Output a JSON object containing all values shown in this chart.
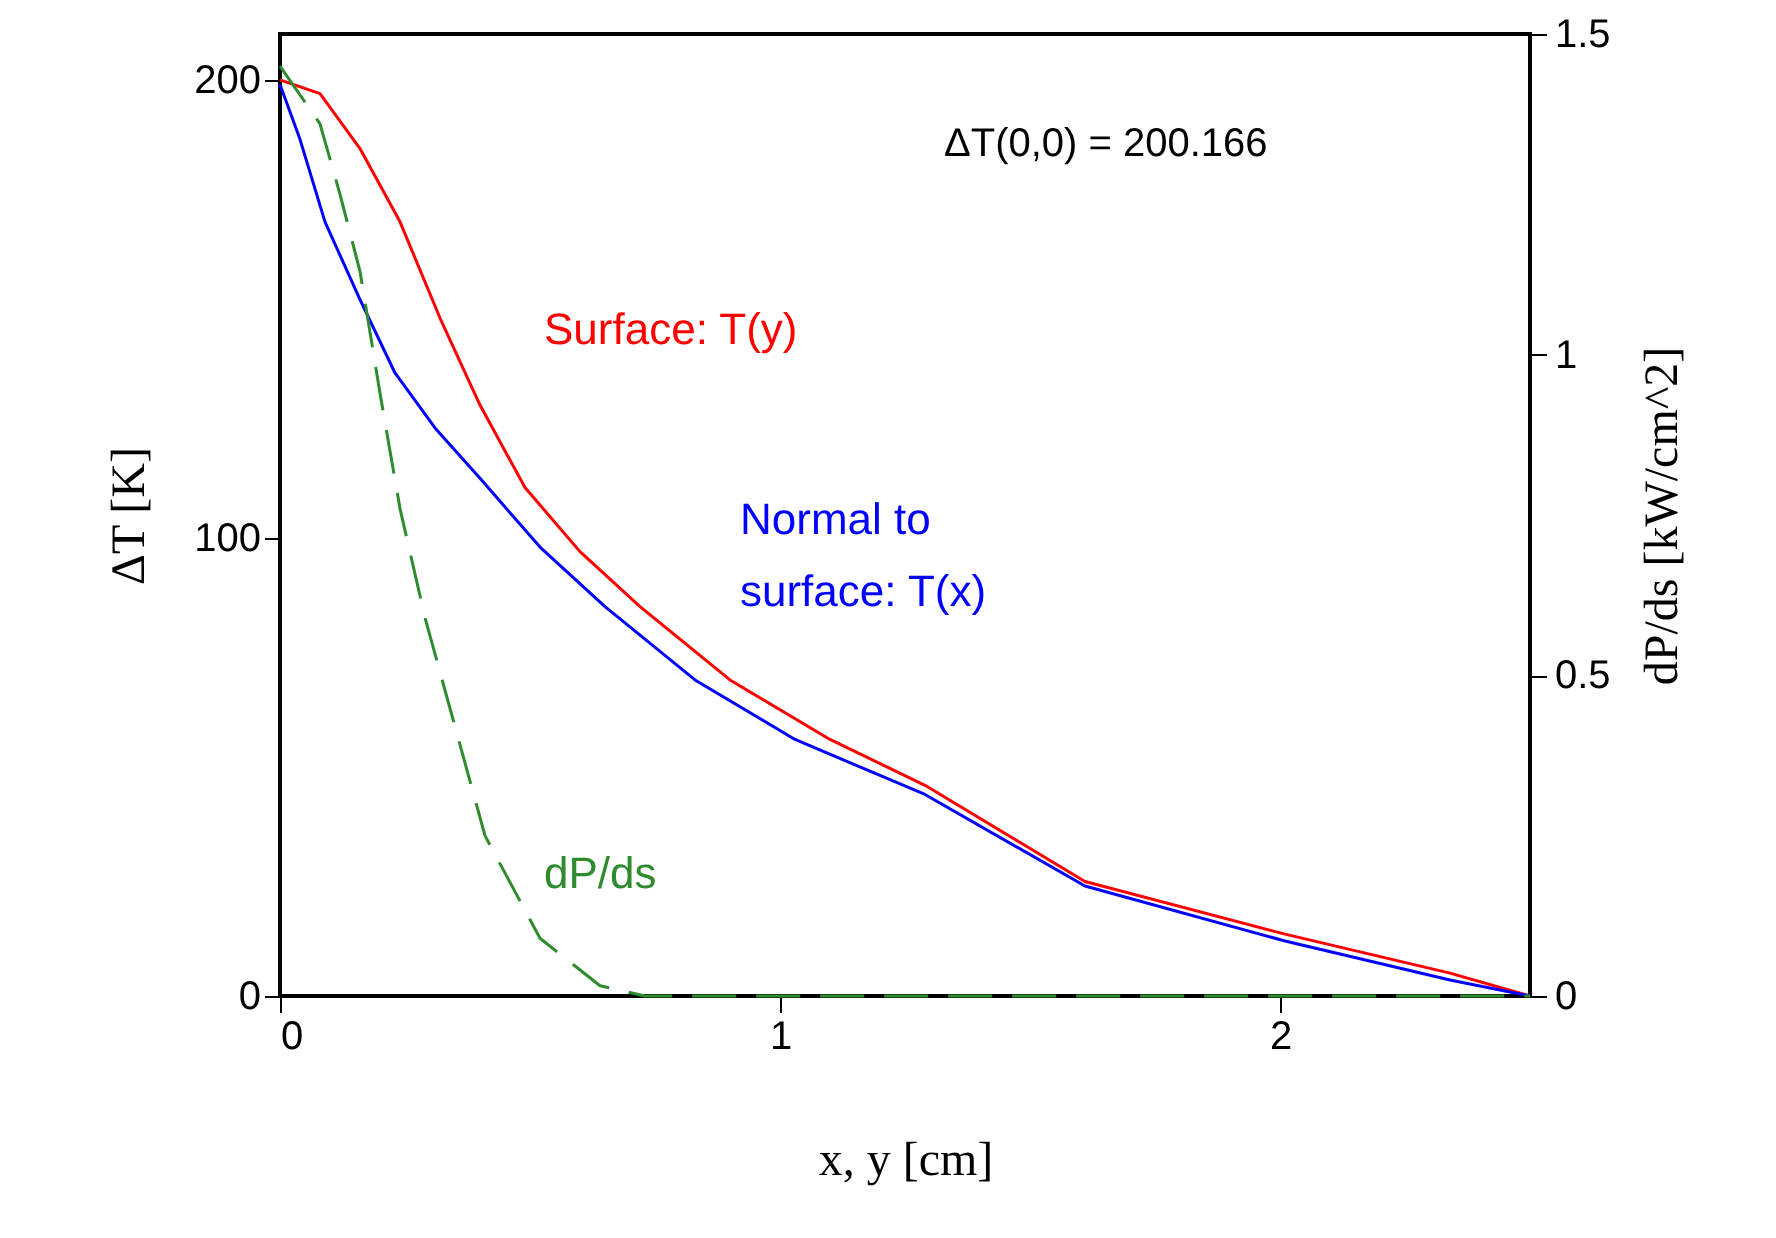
{
  "chart_data": {
    "type": "line",
    "xlabel": "x, y [cm]",
    "ylabel": "ΔT [K]",
    "y2label": "dP/ds [kW/cm^2]",
    "xlim": [
      0,
      2.5
    ],
    "ylim": [
      0,
      210
    ],
    "y2lim": [
      0,
      1.5
    ],
    "xticks": [
      0,
      1,
      2
    ],
    "yticks": [
      0,
      100,
      200
    ],
    "y2ticks": [
      0,
      0.5,
      1,
      1.5
    ],
    "annotations": [
      "ΔT(0,0) = 200.166"
    ],
    "series": [
      {
        "name": "Surface: T(y)",
        "color": "#ff0000",
        "line_style": "solid",
        "x": [
          0,
          0.08,
          0.16,
          0.24,
          0.32,
          0.4,
          0.49,
          0.6,
          0.72,
          0.9,
          1.1,
          1.29,
          1.61,
          2.01,
          2.34,
          2.5
        ],
        "values": [
          200,
          197,
          185,
          169,
          148,
          129,
          111,
          97,
          85,
          69,
          56,
          46,
          25,
          13.5,
          5,
          0
        ]
      },
      {
        "name": "Normal to surface: T(x)",
        "color": "#0000ff",
        "line_style": "solid",
        "x": [
          0,
          0.04,
          0.09,
          0.16,
          0.23,
          0.31,
          0.4,
          0.52,
          0.65,
          0.83,
          1.03,
          1.29,
          1.61,
          2.01,
          2.34,
          2.5
        ],
        "values": [
          199,
          187,
          169,
          152,
          136,
          124,
          113,
          98,
          85,
          69,
          56,
          44,
          24,
          12,
          3.5,
          0
        ]
      },
      {
        "name": "dP/ds",
        "color": "#2e8b2e",
        "line_style": "dashed",
        "axis": "y2",
        "x": [
          0,
          0.08,
          0.12,
          0.16,
          0.2,
          0.24,
          0.29,
          0.35,
          0.41,
          0.52,
          0.64,
          0.73,
          2.5
        ],
        "values": [
          1.45,
          1.36,
          1.25,
          1.13,
          0.94,
          0.76,
          0.59,
          0.42,
          0.25,
          0.09,
          0.016,
          0,
          0
        ]
      }
    ]
  }
}
